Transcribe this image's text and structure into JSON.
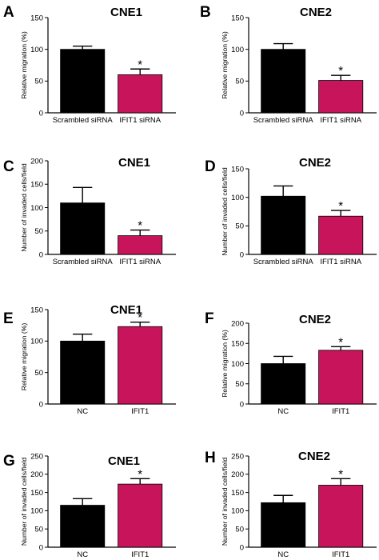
{
  "figure": {
    "colors": {
      "control": "#000000",
      "treatment": "#c8145a",
      "axis": "#000000"
    }
  },
  "chart_data": [
    {
      "panel": "A",
      "title": "CNE1",
      "type": "bar",
      "categories": [
        "Scrambled siRNA",
        "IFIT1 siRNA"
      ],
      "values": [
        100,
        60
      ],
      "errors": [
        5,
        9
      ],
      "significance": [
        "",
        "*"
      ],
      "ylabel": "Relative migration (%)",
      "ylim": [
        0,
        150
      ],
      "yticks": [
        0,
        50,
        100,
        150
      ]
    },
    {
      "panel": "B",
      "title": "CNE2",
      "type": "bar",
      "categories": [
        "Scrambled siRNA",
        "IFIT1 siRNA"
      ],
      "values": [
        100,
        51
      ],
      "errors": [
        9,
        8
      ],
      "significance": [
        "",
        "*"
      ],
      "ylabel": "Relative migration (%)",
      "ylim": [
        0,
        150
      ],
      "yticks": [
        0,
        50,
        100,
        150
      ]
    },
    {
      "panel": "C",
      "title": "CNE1",
      "type": "bar",
      "categories": [
        "Scrambled siRNA",
        "IFIT1 siRNA"
      ],
      "values": [
        110,
        40
      ],
      "errors": [
        33,
        12
      ],
      "significance": [
        "",
        "*"
      ],
      "ylabel": "Number of invaded cells/field",
      "ylim": [
        0,
        200
      ],
      "yticks": [
        0,
        50,
        100,
        150,
        200
      ]
    },
    {
      "panel": "D",
      "title": "CNE2",
      "type": "bar",
      "categories": [
        "Scrambled siRNA",
        "IFIT1 siRNA"
      ],
      "values": [
        102,
        67
      ],
      "errors": [
        18,
        10
      ],
      "significance": [
        "",
        "*"
      ],
      "ylabel": "Number of invaded cells/field",
      "ylim": [
        0,
        150
      ],
      "yticks": [
        0,
        50,
        100,
        150
      ]
    },
    {
      "panel": "E",
      "title": "CNE1",
      "type": "bar",
      "categories": [
        "NC",
        "IFIT1"
      ],
      "values": [
        100,
        123
      ],
      "errors": [
        11,
        7
      ],
      "significance": [
        "",
        "*"
      ],
      "ylabel": "Relative migration (%)",
      "ylim": [
        0,
        150
      ],
      "yticks": [
        0,
        50,
        100,
        150
      ]
    },
    {
      "panel": "F",
      "title": "CNE2",
      "type": "bar",
      "categories": [
        "NC",
        "IFIT1"
      ],
      "values": [
        100,
        133
      ],
      "errors": [
        18,
        9
      ],
      "significance": [
        "",
        "*"
      ],
      "ylabel": "Relative migration (%)",
      "ylim": [
        0,
        200
      ],
      "yticks": [
        0,
        50,
        100,
        150,
        200
      ]
    },
    {
      "panel": "G",
      "title": "CNE1",
      "type": "bar",
      "categories": [
        "NC",
        "IFIT1"
      ],
      "values": [
        115,
        173
      ],
      "errors": [
        18,
        15
      ],
      "significance": [
        "",
        "*"
      ],
      "ylabel": "Number of invaded cells/field",
      "ylim": [
        0,
        250
      ],
      "yticks": [
        0,
        50,
        100,
        150,
        200,
        250
      ]
    },
    {
      "panel": "H",
      "title": "CNE2",
      "type": "bar",
      "categories": [
        "NC",
        "IFIT1"
      ],
      "values": [
        122,
        170
      ],
      "errors": [
        20,
        18
      ],
      "significance": [
        "",
        "*"
      ],
      "ylabel": "Number of invaded cells/field",
      "ylim": [
        0,
        250
      ],
      "yticks": [
        0,
        50,
        100,
        150,
        200,
        250
      ]
    }
  ]
}
